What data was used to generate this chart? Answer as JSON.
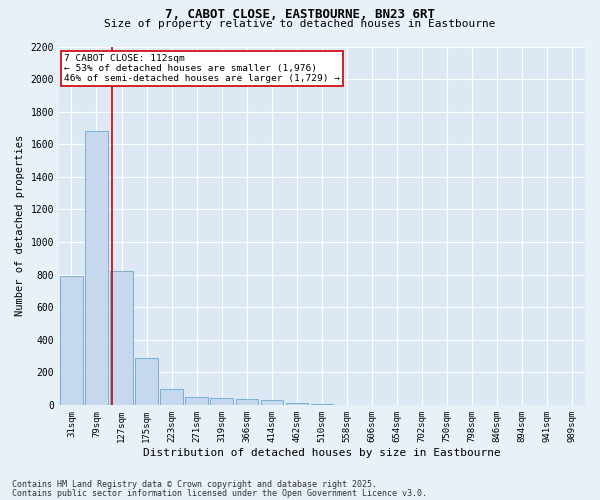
{
  "title1": "7, CABOT CLOSE, EASTBOURNE, BN23 6RT",
  "title2": "Size of property relative to detached houses in Eastbourne",
  "xlabel": "Distribution of detached houses by size in Eastbourne",
  "ylabel": "Number of detached properties",
  "bar_color": "#c5d8ee",
  "bar_edge_color": "#7aafd4",
  "bg_color": "#dce9f5",
  "fig_bg_color": "#e8f0f8",
  "grid_color": "#ffffff",
  "categories": [
    "31sqm",
    "79sqm",
    "127sqm",
    "175sqm",
    "223sqm",
    "271sqm",
    "319sqm",
    "366sqm",
    "414sqm",
    "462sqm",
    "510sqm",
    "558sqm",
    "606sqm",
    "654sqm",
    "702sqm",
    "750sqm",
    "798sqm",
    "846sqm",
    "894sqm",
    "941sqm",
    "989sqm"
  ],
  "values": [
    790,
    1680,
    820,
    290,
    100,
    48,
    40,
    35,
    28,
    12,
    5,
    0,
    0,
    0,
    0,
    0,
    0,
    0,
    0,
    0,
    0
  ],
  "ylim": [
    0,
    2200
  ],
  "yticks": [
    0,
    200,
    400,
    600,
    800,
    1000,
    1200,
    1400,
    1600,
    1800,
    2000,
    2200
  ],
  "vline_x": 1.62,
  "vline_color": "#cc0000",
  "annotation_text": "7 CABOT CLOSE: 112sqm\n← 53% of detached houses are smaller (1,976)\n46% of semi-detached houses are larger (1,729) →",
  "annotation_box_color": "#ffffff",
  "annotation_box_edge_color": "#cc0000",
  "footer1": "Contains HM Land Registry data © Crown copyright and database right 2025.",
  "footer2": "Contains public sector information licensed under the Open Government Licence v3.0."
}
